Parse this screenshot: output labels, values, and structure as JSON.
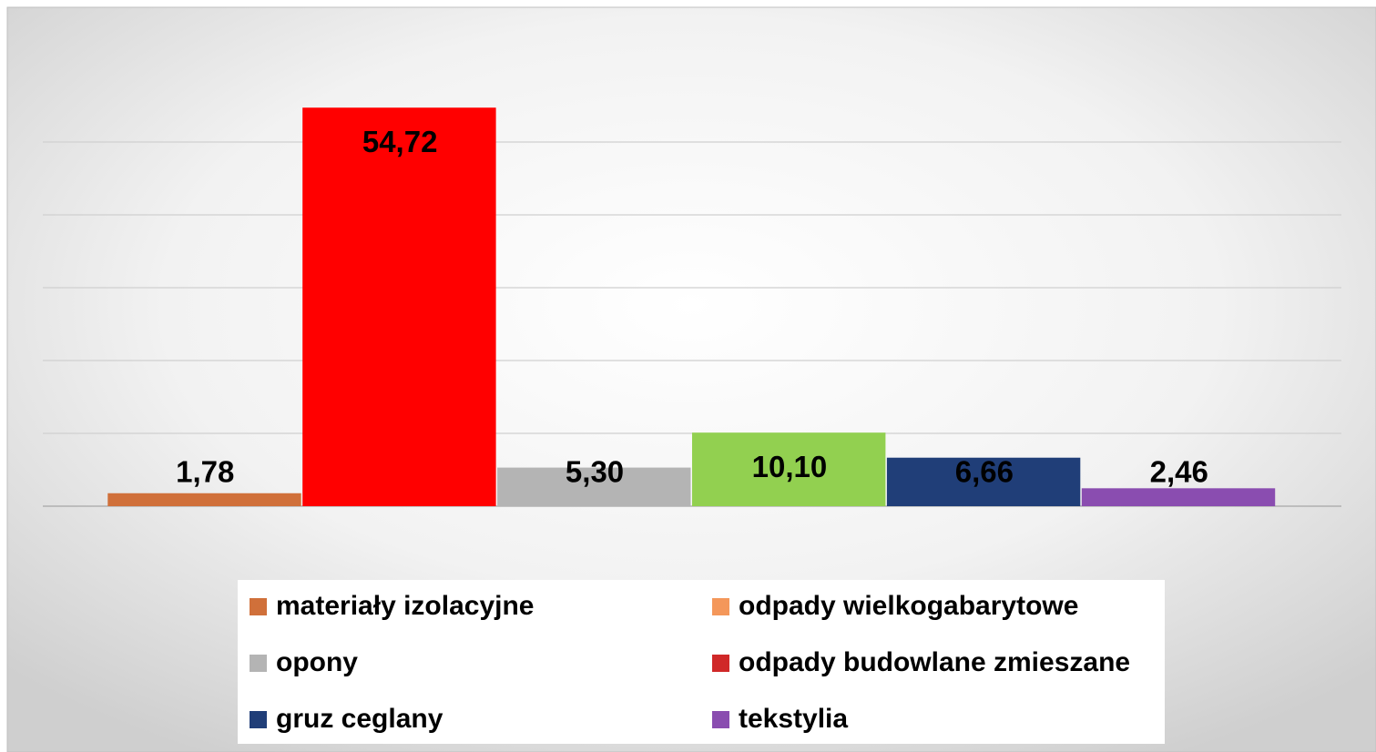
{
  "chart_data": {
    "type": "bar",
    "values": [
      1.78,
      54.72,
      5.3,
      10.1,
      6.66,
      2.46
    ],
    "value_labels": [
      "1,78",
      "54,72",
      "5,30",
      "10,10",
      "6,66",
      "2,46"
    ],
    "colors": [
      "#d0703a",
      "#ff0000",
      "#b4b4b4",
      "#92d050",
      "#203e78",
      "#8a4db0"
    ],
    "ylim": [
      0,
      60
    ],
    "yticks": [
      0,
      10,
      20,
      30,
      40,
      50
    ],
    "grid": true,
    "legend": [
      {
        "name": "materiały izolacyjne",
        "color": "#d0703a"
      },
      {
        "name": "odpady wielkogabarytowe",
        "color": "#f4975a"
      },
      {
        "name": "opony",
        "color": "#b4b4b4"
      },
      {
        "name": "odpady budowlane zmieszane",
        "color": "#d02828"
      },
      {
        "name": "gruz ceglany",
        "color": "#203e78"
      },
      {
        "name": "tekstylia",
        "color": "#8a4db0"
      }
    ]
  }
}
